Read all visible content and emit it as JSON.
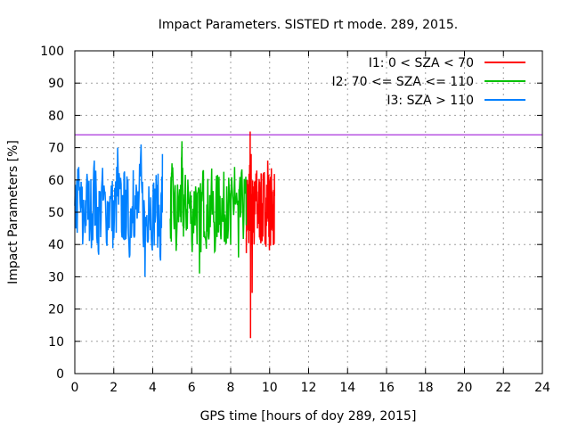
{
  "chart_data": {
    "type": "line",
    "title": "Impact Parameters. SISTED rt mode. 289, 2015.",
    "xlabel": "GPS time [hours of doy 289, 2015]",
    "ylabel": "Impact Parameters [%]",
    "xlim": [
      0,
      24
    ],
    "ylim": [
      0,
      100
    ],
    "xticks": [
      0,
      2,
      4,
      6,
      8,
      10,
      12,
      14,
      16,
      18,
      20,
      22,
      24
    ],
    "yticks": [
      0,
      10,
      20,
      30,
      40,
      50,
      60,
      70,
      80,
      90,
      100
    ],
    "grid": true,
    "legend_position": "top-right",
    "reference_line": {
      "y": 74,
      "color": "#9400d3"
    },
    "series": [
      {
        "name": "I1: 0 < SZA < 70",
        "color": "#ff0000",
        "x": [
          8.8,
          8.85,
          8.9,
          8.95,
          9.0,
          9.02,
          9.05,
          9.1,
          9.15,
          9.2,
          9.3,
          9.4,
          9.5,
          9.6,
          9.7,
          9.8,
          9.9,
          10.0,
          10.1,
          10.2,
          10.25
        ],
        "values": [
          42,
          60,
          48,
          55,
          75,
          11,
          68,
          25,
          58,
          40,
          62,
          47,
          55,
          43,
          60,
          50,
          66,
          45,
          58,
          48,
          55
        ]
      },
      {
        "name": "I2: 70 <= SZA <= 110",
        "color": "#00c000",
        "x": [
          4.9,
          5.0,
          5.2,
          5.4,
          5.5,
          5.6,
          5.8,
          6.0,
          6.2,
          6.4,
          6.6,
          6.8,
          7.0,
          7.2,
          7.4,
          7.6,
          7.8,
          8.0,
          8.2,
          8.4,
          8.6,
          8.8
        ],
        "values": [
          48,
          62,
          38,
          55,
          72,
          45,
          60,
          41,
          58,
          31,
          63,
          44,
          56,
          38,
          61,
          47,
          58,
          40,
          64,
          36,
          57,
          46
        ]
      },
      {
        "name": "I3: SZA > 110",
        "color": "#0080ff",
        "x": [
          0.0,
          0.2,
          0.4,
          0.6,
          0.8,
          1.0,
          1.2,
          1.4,
          1.6,
          1.8,
          2.0,
          2.2,
          2.4,
          2.6,
          2.8,
          3.0,
          3.2,
          3.4,
          3.6,
          3.8,
          4.0,
          4.2,
          4.4,
          4.5
        ],
        "values": [
          52,
          64,
          40,
          58,
          45,
          66,
          38,
          60,
          47,
          55,
          42,
          70,
          44,
          57,
          36,
          63,
          48,
          71,
          30,
          58,
          46,
          55,
          35,
          68
        ]
      }
    ]
  }
}
